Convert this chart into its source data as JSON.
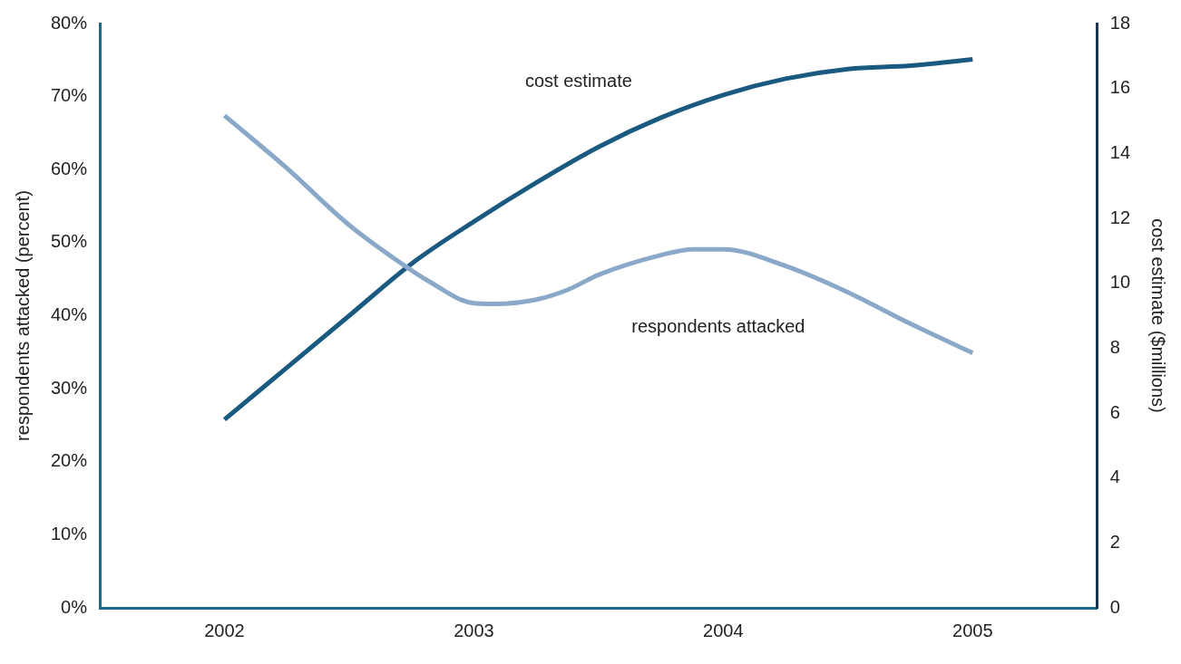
{
  "chart_data": {
    "type": "line",
    "ylabel": "respondents attacked (percent)",
    "y2label": "cost estimate ($millions)",
    "xlim": [
      2001.5,
      2005.5
    ],
    "xticks": [
      2002,
      2003,
      2004,
      2005
    ],
    "ylim": [
      0,
      80
    ],
    "yticks": [
      {
        "value": 0,
        "label": "0%"
      },
      {
        "value": 10,
        "label": "10%"
      },
      {
        "value": 20,
        "label": "20%"
      },
      {
        "value": 30,
        "label": "30%"
      },
      {
        "value": 40,
        "label": "40%"
      },
      {
        "value": 50,
        "label": "50%"
      },
      {
        "value": 60,
        "label": "60%"
      },
      {
        "value": 70,
        "label": "70%"
      },
      {
        "value": 80,
        "label": "80%"
      }
    ],
    "y2lim": [
      0,
      18
    ],
    "y2ticks": [
      0,
      2,
      4,
      6,
      8,
      10,
      12,
      14,
      16,
      18
    ],
    "grid": false,
    "legend": false,
    "series": [
      {
        "name": "respondents attacked",
        "color": "#8aa8c8",
        "x": [
          2002,
          2002.25,
          2002.5,
          2002.75,
          2002.81,
          2003,
          2003.08,
          2003.25,
          2003.38,
          2003.5,
          2003.75,
          2003.88,
          2004,
          2004.25,
          2004.5,
          2004.75,
          2005
        ],
        "values": [
          67.4,
          60.2,
          52.4,
          46.2,
          44.9,
          41.7,
          41.6,
          42.2,
          43.6,
          45.6,
          48.3,
          49.1,
          49.1,
          46.8,
          43.2,
          38.9,
          34.9
        ]
      },
      {
        "name": "cost estimate",
        "color": "#1a5a80",
        "axis": "y2",
        "x": [
          2002,
          2002.25,
          2002.5,
          2002.75,
          2003,
          2003.25,
          2003.5,
          2003.75,
          2004,
          2004.25,
          2004.5,
          2004.75,
          2005
        ],
        "values": [
          5.8,
          7.4,
          9.0,
          10.6,
          11.9,
          13.1,
          14.2,
          15.1,
          15.8,
          16.3,
          16.6,
          16.7,
          16.9
        ]
      }
    ]
  }
}
